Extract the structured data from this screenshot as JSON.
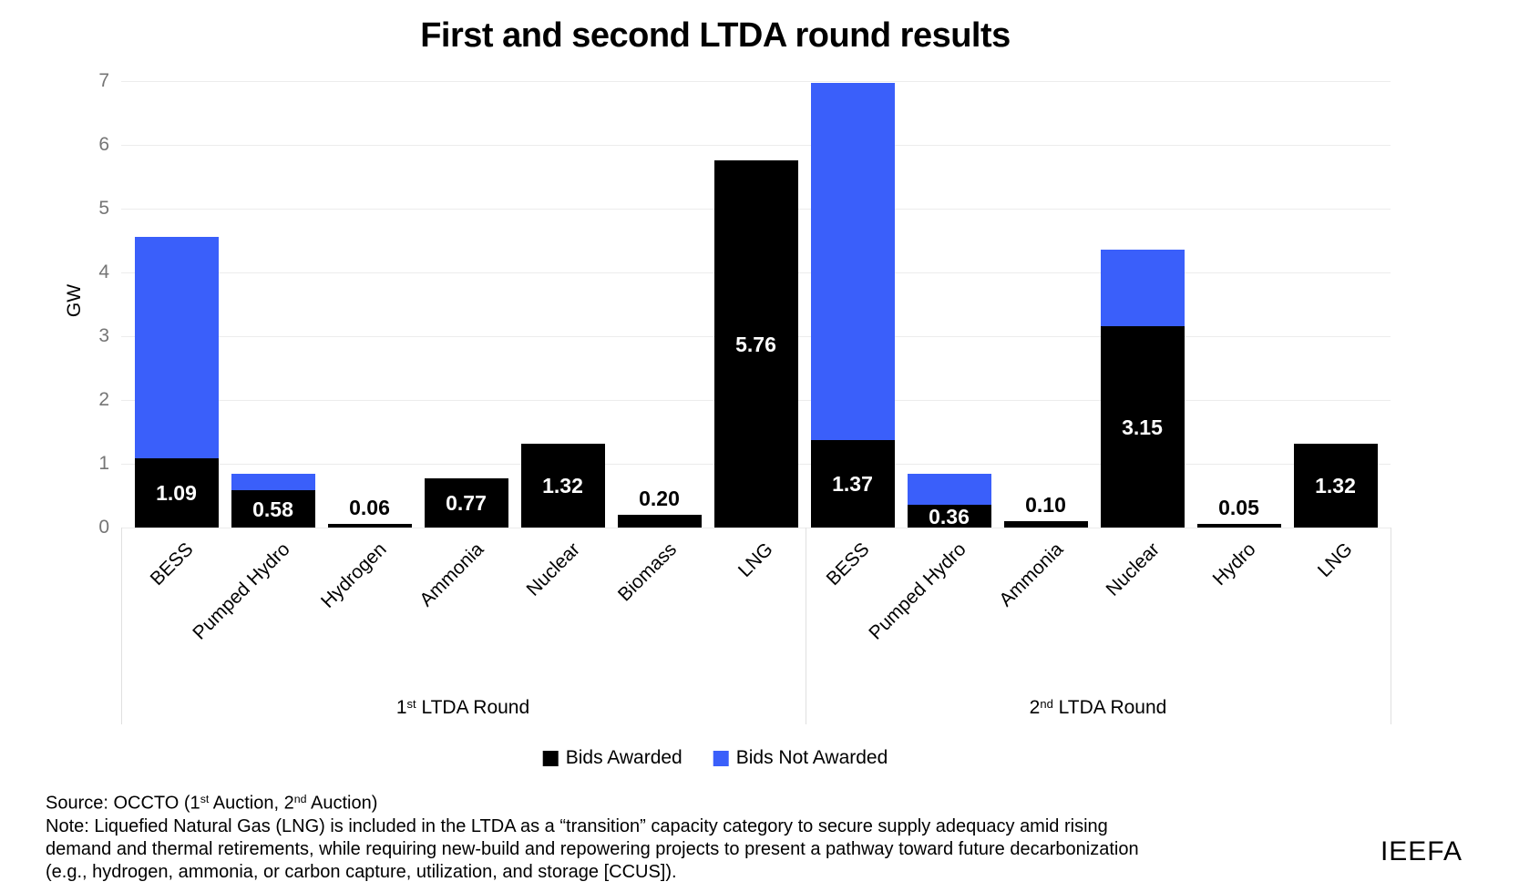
{
  "title": "First and second LTDA round results",
  "footer": {
    "source_parts": {
      "p1": "Source: OCCTO (1",
      "s1": "st",
      "p2": " Auction, 2",
      "s2": "nd",
      "p3": " Auction)"
    },
    "note_lines": [
      "Note: Liquefied Natural Gas (LNG) is included in the LTDA as a “transition” capacity category to secure supply adequacy amid rising",
      "demand and thermal retirements, while requiring new-build and repowering projects to present a pathway toward future decarbonization",
      "(e.g., hydrogen, ammonia, or carbon capture, utilization, and storage [CCUS])."
    ],
    "brand": "IEEFA"
  },
  "chart_data": {
    "type": "bar",
    "stacked": true,
    "title": "First and second LTDA round results",
    "xlabel": "",
    "ylabel": "GW",
    "ylim": [
      0,
      7
    ],
    "yticks": [
      0,
      1,
      2,
      3,
      4,
      5,
      6,
      7
    ],
    "grid": true,
    "legend_position": "bottom",
    "legend": [
      {
        "name": "Bids Awarded",
        "label": "Bids Awarded",
        "color": "#000000"
      },
      {
        "name": "Bids Not Awarded",
        "label": "Bids Not Awarded",
        "color": "#3A5FFA"
      }
    ],
    "colors": {
      "awarded": "#000000",
      "not_awarded": "#3A5FFA",
      "grid": "#ececec",
      "tick": "#757575",
      "divider": "#e0e0e0"
    },
    "groups": [
      {
        "label": {
          "num": "1",
          "sup": "st",
          "rest": " LTDA Round"
        },
        "bars": [
          {
            "category": "BESS",
            "awarded": 1.09,
            "not_awarded": 3.47,
            "label": "1.09"
          },
          {
            "category": "Pumped Hydro",
            "awarded": 0.58,
            "not_awarded": 0.25,
            "label": "0.58"
          },
          {
            "category": "Hydrogen",
            "awarded": 0.06,
            "not_awarded": 0,
            "label": "0.06"
          },
          {
            "category": "Ammonia",
            "awarded": 0.77,
            "not_awarded": 0,
            "label": "0.77"
          },
          {
            "category": "Nuclear",
            "awarded": 1.32,
            "not_awarded": 0,
            "label": "1.32"
          },
          {
            "category": "Biomass",
            "awarded": 0.2,
            "not_awarded": 0,
            "label": "0.20"
          },
          {
            "category": "LNG",
            "awarded": 5.76,
            "not_awarded": 0,
            "label": "5.76"
          }
        ]
      },
      {
        "label": {
          "num": "2",
          "sup": "nd",
          "rest": " LTDA Round"
        },
        "bars": [
          {
            "category": "BESS",
            "awarded": 1.37,
            "not_awarded": 5.6,
            "label": "1.37"
          },
          {
            "category": "Pumped Hydro",
            "awarded": 0.36,
            "not_awarded": 0.48,
            "label": "0.36"
          },
          {
            "category": "Ammonia",
            "awarded": 0.1,
            "not_awarded": 0,
            "label": "0.10"
          },
          {
            "category": "Nuclear",
            "awarded": 3.15,
            "not_awarded": 1.2,
            "label": "3.15"
          },
          {
            "category": "Hydro",
            "awarded": 0.05,
            "not_awarded": 0,
            "label": "0.05"
          },
          {
            "category": "LNG",
            "awarded": 1.32,
            "not_awarded": 0,
            "label": "1.32"
          }
        ]
      }
    ]
  }
}
